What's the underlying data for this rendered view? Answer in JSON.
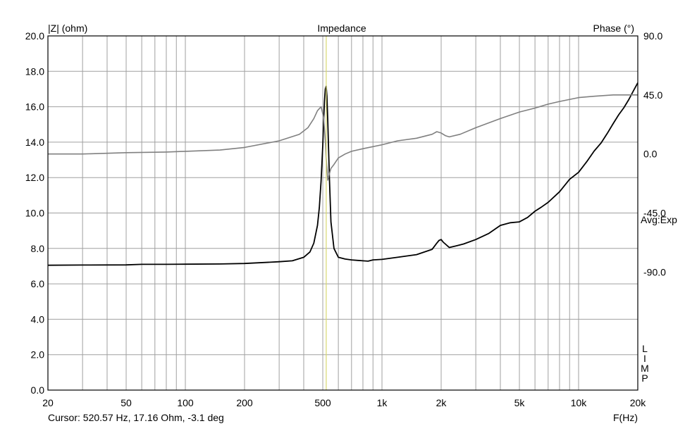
{
  "chart_data": {
    "type": "line",
    "title": "Impedance",
    "y_left_label": "|Z| (ohm)",
    "y_right_label": "Phase (°)",
    "x_label": "F(Hz)",
    "x_scale": "log",
    "xlim": [
      20,
      20000
    ],
    "ylim_left": [
      0,
      20
    ],
    "ylim_right": [
      -180,
      90
    ],
    "x_ticks": [
      {
        "value": 20,
        "label": "20"
      },
      {
        "value": 50,
        "label": "50"
      },
      {
        "value": 100,
        "label": "100"
      },
      {
        "value": 200,
        "label": "200"
      },
      {
        "value": 500,
        "label": "500"
      },
      {
        "value": 1000,
        "label": "1k"
      },
      {
        "value": 2000,
        "label": "2k"
      },
      {
        "value": 5000,
        "label": "5k"
      },
      {
        "value": 10000,
        "label": "10k"
      },
      {
        "value": 20000,
        "label": "20k"
      }
    ],
    "y_left_ticks": [
      "0.0",
      "2.0",
      "4.0",
      "6.0",
      "8.0",
      "10.0",
      "12.0",
      "14.0",
      "16.0",
      "18.0",
      "20.0"
    ],
    "y_right_ticks": [
      {
        "value": 90,
        "label": "90.0"
      },
      {
        "value": 45,
        "label": "45.0"
      },
      {
        "value": 0,
        "label": "0.0"
      },
      {
        "value": -45,
        "label": "-45.0"
      },
      {
        "value": -90,
        "label": "-90.0"
      }
    ],
    "annotation": "Avg:Exp",
    "side_label": "LIMP",
    "grid": true,
    "cursor": {
      "frequency": 520.57,
      "color": "#d8d870"
    },
    "cursor_text": "Cursor: 520.57 Hz, 17.16 Ohm, -3.1 deg",
    "series": [
      {
        "color": "#000000",
        "axis": "left",
        "x": [
          20,
          30,
          50,
          60,
          80,
          100,
          150,
          200,
          300,
          350,
          400,
          430,
          450,
          470,
          480,
          490,
          500,
          505,
          510,
          515,
          520,
          525,
          530,
          540,
          550,
          570,
          600,
          650,
          700,
          800,
          850,
          900,
          1000,
          1200,
          1500,
          1800,
          1900,
          1950,
          2000,
          2050,
          2100,
          2200,
          2400,
          2600,
          3000,
          3500,
          4000,
          4500,
          5000,
          5500,
          6000,
          6500,
          7000,
          8000,
          9000,
          10000,
          11000,
          12000,
          13000,
          14000,
          15000,
          16000,
          17000,
          18000,
          19000,
          20000
        ],
        "y": [
          7.05,
          7.06,
          7.07,
          7.1,
          7.1,
          7.11,
          7.12,
          7.15,
          7.25,
          7.3,
          7.5,
          7.8,
          8.3,
          9.3,
          10.3,
          11.8,
          13.8,
          15.2,
          16.3,
          17.0,
          17.16,
          16.6,
          15.2,
          12.0,
          9.5,
          8.0,
          7.5,
          7.4,
          7.35,
          7.3,
          7.28,
          7.35,
          7.38,
          7.5,
          7.65,
          7.95,
          8.3,
          8.45,
          8.5,
          8.35,
          8.25,
          8.05,
          8.15,
          8.25,
          8.5,
          8.85,
          9.3,
          9.45,
          9.5,
          9.75,
          10.1,
          10.35,
          10.6,
          11.2,
          11.9,
          12.3,
          12.9,
          13.5,
          13.95,
          14.5,
          15.05,
          15.55,
          15.95,
          16.4,
          16.9,
          17.35
        ]
      },
      {
        "color": "#808080",
        "axis": "right",
        "x": [
          20,
          30,
          50,
          80,
          100,
          150,
          200,
          300,
          380,
          420,
          450,
          470,
          490,
          505,
          515,
          520,
          525,
          530,
          540,
          550,
          570,
          600,
          650,
          700,
          800,
          1000,
          1200,
          1500,
          1800,
          1900,
          2000,
          2100,
          2200,
          2500,
          3000,
          4000,
          5000,
          6000,
          7000,
          8000,
          10000,
          12000,
          15000,
          20000
        ],
        "y": [
          0,
          0,
          1,
          1.5,
          2,
          3,
          5,
          10,
          15,
          20,
          27,
          33,
          36,
          28,
          10,
          -3.1,
          -10,
          -20,
          -15,
          -11,
          -8,
          -3,
          0,
          2,
          4,
          7,
          10,
          12,
          15,
          17,
          16,
          14,
          13,
          15,
          20,
          27,
          32,
          35,
          38,
          40,
          43,
          44,
          45,
          45
        ]
      }
    ]
  }
}
